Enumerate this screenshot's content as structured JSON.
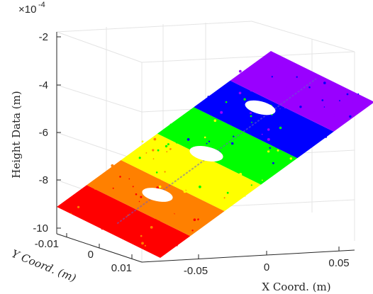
{
  "chart_data": {
    "type": "scatter",
    "title": "",
    "xlabel": "X Coord. (m)",
    "ylabel": "Y Coord. (m)",
    "zlabel": "Height Data (m)",
    "z_exponent_label": "×10",
    "z_exponent_power": "-4",
    "x_ticks": [
      "-0.05",
      "0",
      "0.05"
    ],
    "y_ticks": [
      "-0.01",
      "0",
      "0.01"
    ],
    "z_ticks": [
      "-2",
      "-4",
      "-6",
      "-8",
      "-10"
    ],
    "xlim": [
      -0.08,
      0.08
    ],
    "ylim": [
      -0.015,
      0.015
    ],
    "zlim": [
      -10,
      -2
    ],
    "grid": true,
    "colors": [
      "#ff0000",
      "#ff8000",
      "#ffff00",
      "#00ff00",
      "#0000ff",
      "#9900ff"
    ],
    "series": [
      {
        "color": "#ff0000",
        "x_range": [
          -0.075,
          -0.05
        ],
        "z_mean": -9.0
      },
      {
        "color": "#ff8000",
        "x_range": [
          -0.05,
          -0.025
        ],
        "z_mean": -8.3
      },
      {
        "color": "#ffff00",
        "x_range": [
          -0.025,
          0.0
        ],
        "z_mean": -7.3
      },
      {
        "color": "#00ff00",
        "x_range": [
          0.0,
          0.025
        ],
        "z_mean": -6.2
      },
      {
        "color": "#0000ff",
        "x_range": [
          0.025,
          0.05
        ],
        "z_mean": -4.8
      },
      {
        "color": "#9900ff",
        "x_range": [
          0.05,
          0.075
        ],
        "z_mean": -3.2
      }
    ]
  }
}
